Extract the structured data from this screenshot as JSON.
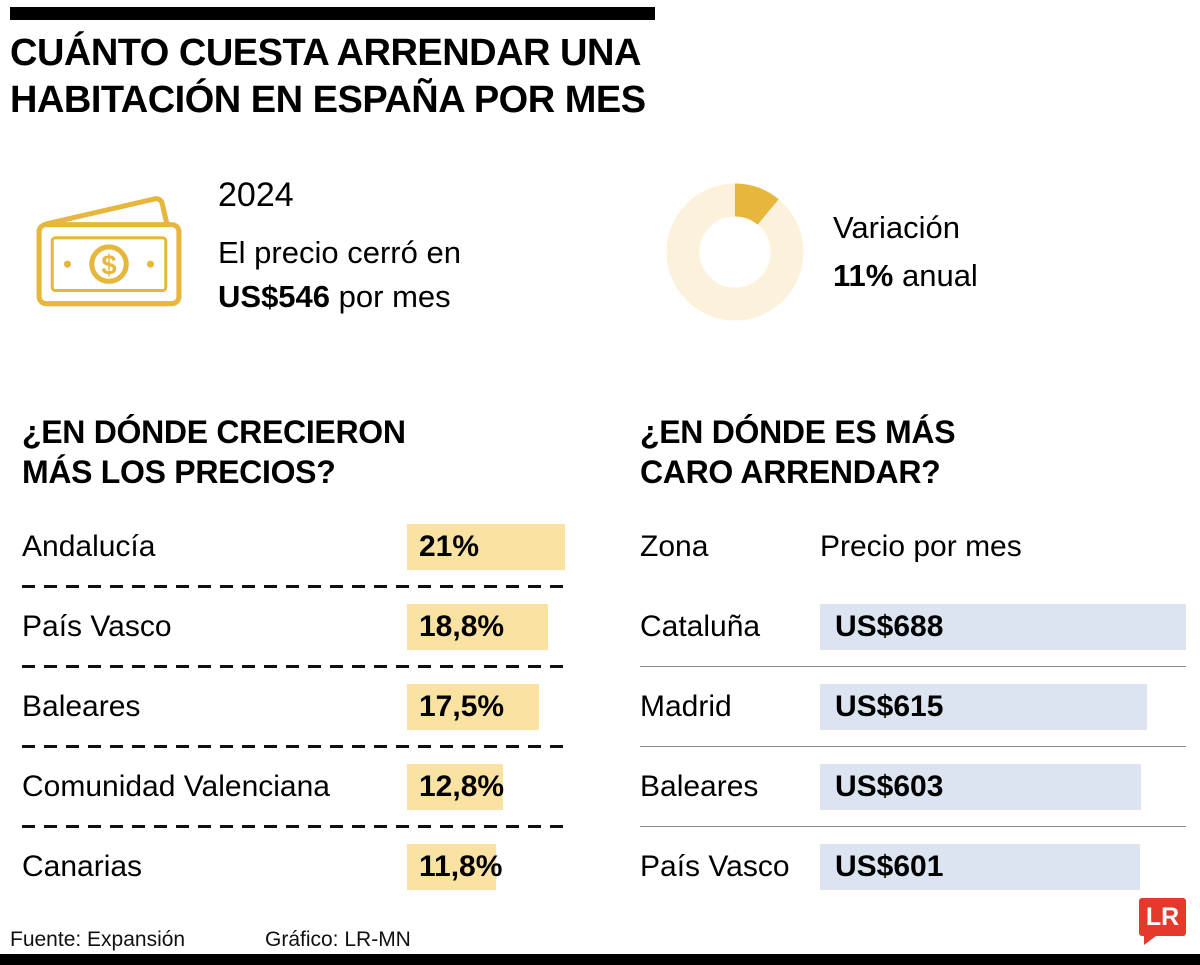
{
  "colors": {
    "gold": "#E7B73D",
    "gold_light": "#FAE2A3",
    "cream": "#FCF2DC",
    "blue_light": "#DCE3F1",
    "red": "#E53A2B",
    "black": "#000000"
  },
  "header": {
    "title_line1": "CUÁNTO CUESTA ARRENDAR UNA",
    "title_line2": "HABITACIÓN EN ESPAÑA POR MES"
  },
  "summary": {
    "year": "2024",
    "price_prefix": "El precio cerró en",
    "price_value": "US$546",
    "price_suffix": "por mes",
    "variation_label": "Variación",
    "variation_value": "11%",
    "variation_suffix": "anual"
  },
  "growth_section": {
    "title_line1": "¿EN DÓNDE CRECIERON",
    "title_line2": "MÁS LOS PRECIOS?",
    "items": [
      {
        "region": "Andalucía",
        "value": "21%"
      },
      {
        "region": "País Vasco",
        "value": "18,8%"
      },
      {
        "region": "Baleares",
        "value": "17,5%"
      },
      {
        "region": "Comunidad Valenciana",
        "value": "12,8%"
      },
      {
        "region": "Canarias",
        "value": "11,8%"
      }
    ]
  },
  "price_section": {
    "title_line1": "¿EN DÓNDE ES MÁS",
    "title_line2": "CARO ARRENDAR?",
    "col_zone": "Zona",
    "col_price": "Precio por mes",
    "rows": [
      {
        "zone": "Cataluña",
        "price": "US$688"
      },
      {
        "zone": "Madrid",
        "price": "US$615"
      },
      {
        "zone": "Baleares",
        "price": "US$603"
      },
      {
        "zone": "País Vasco",
        "price": "US$601"
      }
    ]
  },
  "footer": {
    "source": "Fuente: Expansión",
    "credit": "Gráfico: LR-MN",
    "logo_text": "LR"
  },
  "chart_data": [
    {
      "id": "variation-donut",
      "type": "pie",
      "title": "Variación 11% anual",
      "labels": [
        "Variación anual",
        "Resto"
      ],
      "values": [
        11,
        89
      ],
      "colors": [
        "#E7B73D",
        "#FCF2DC"
      ],
      "donut": true
    },
    {
      "id": "growth",
      "type": "bar",
      "title": "¿En dónde crecieron más los precios?",
      "orientation": "horizontal",
      "categories": [
        "Andalucía",
        "País Vasco",
        "Baleares",
        "Comunidad Valenciana",
        "Canarias"
      ],
      "values": [
        21,
        18.8,
        17.5,
        12.8,
        11.8
      ],
      "value_labels": [
        "21%",
        "18,8%",
        "17,5%",
        "12,8%",
        "11,8%"
      ],
      "unit": "%",
      "xlim": [
        0,
        21
      ],
      "bar_color": "#FAE2A3"
    },
    {
      "id": "prices",
      "type": "bar",
      "title": "¿En dónde es más caro arrendar?",
      "orientation": "horizontal",
      "categories": [
        "Cataluña",
        "Madrid",
        "Baleares",
        "País Vasco"
      ],
      "values": [
        688,
        615,
        603,
        601
      ],
      "value_labels": [
        "US$688",
        "US$615",
        "US$603",
        "US$601"
      ],
      "unit": "US$ por mes",
      "xlim": [
        0,
        688
      ],
      "bar_color": "#DCE3F1"
    }
  ]
}
